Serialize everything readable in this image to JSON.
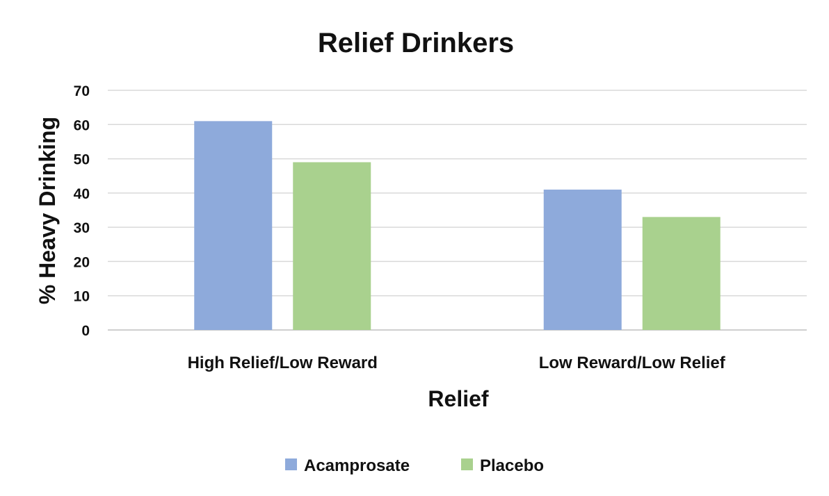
{
  "chart_data": {
    "type": "bar",
    "title": "Relief Drinkers",
    "xlabel": "Relief",
    "ylabel": "% Heavy Drinking",
    "ylim": [
      0,
      70
    ],
    "yticks": [
      0,
      10,
      20,
      30,
      40,
      50,
      60,
      70
    ],
    "grid": true,
    "legend_position": "bottom",
    "categories": [
      "High Relief/Low Reward",
      "Low Reward/Low Relief"
    ],
    "series": [
      {
        "name": "Acamprosate",
        "color": "#8eaadb",
        "values": [
          61,
          41
        ]
      },
      {
        "name": "Placebo",
        "color": "#a9d18e",
        "values": [
          49,
          33
        ]
      }
    ]
  }
}
